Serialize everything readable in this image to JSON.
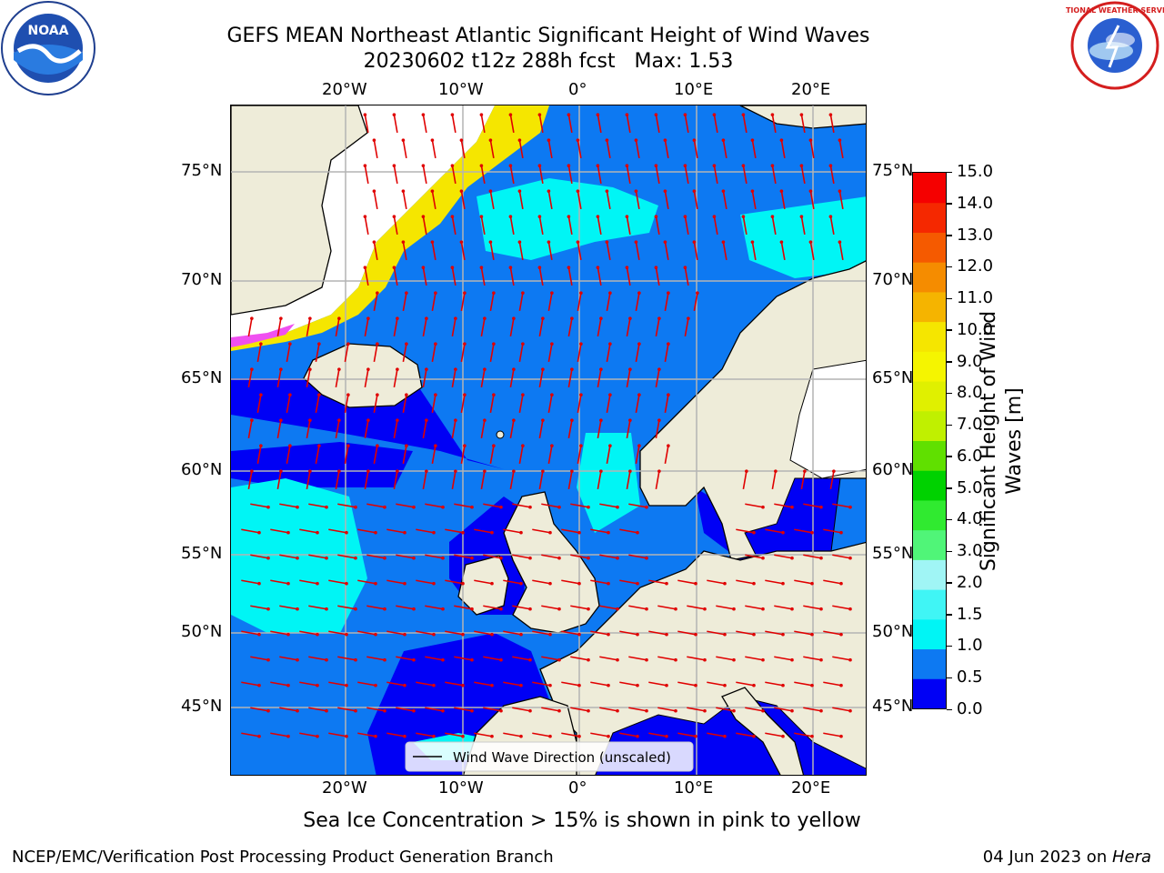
{
  "title": {
    "line1": "GEFS MEAN Northeast Atlantic Significant Height of Wind Waves",
    "line2": "20230602 t12z 288h fcst   Max: 1.53"
  },
  "map": {
    "top_lon_labels": [
      "20°W",
      "10°W",
      "0°",
      "10°E",
      "20°E"
    ],
    "bottom_lon_labels": [
      "20°W",
      "10°W",
      "0°",
      "10°E",
      "20°E"
    ],
    "left_lat_labels": [
      "75°N",
      "70°N",
      "65°N",
      "60°N",
      "55°N",
      "50°N",
      "45°N"
    ],
    "right_lat_labels": [
      "75°N",
      "70°N",
      "65°N",
      "60°N",
      "55°N",
      "50°N",
      "45°N"
    ],
    "legend_label": "Wind Wave Direction (unscaled)",
    "colors": {
      "land": "#eeecd9",
      "sea_base": "#0d79f2",
      "sea_low": "#0000f5",
      "sea_mid": "#00f5f5",
      "ice": "#ffffff",
      "arrow": "#e00000"
    }
  },
  "colorbar": {
    "label": "Significant Height of Wind Waves [m]",
    "ticks": [
      "15.0",
      "14.0",
      "13.0",
      "12.0",
      "11.0",
      "10.0",
      "9.0",
      "8.0",
      "7.0",
      "6.0",
      "5.0",
      "4.0",
      "3.0",
      "2.0",
      "1.5",
      "1.0",
      "0.5",
      "0.0"
    ],
    "colors": [
      "#0000f5",
      "#0d79f2",
      "#00f5f5",
      "#40f5f5",
      "#a0f5f5",
      "#50f578",
      "#30ea30",
      "#00d200",
      "#60e000",
      "#c0f000",
      "#e0f000",
      "#f5f500",
      "#f5e600",
      "#f5b400",
      "#f58c00",
      "#f55a00",
      "#f52800",
      "#f50000"
    ]
  },
  "notes": {
    "ice_note": "Sea Ice Concentration > 15% is shown in pink to yellow"
  },
  "footer": {
    "left": "NCEP/EMC/Verification Post Processing Product Generation Branch",
    "date": "04 Jun 2023 on ",
    "host": "Hera"
  },
  "logos": {
    "noaa_text": "NOAA",
    "nws_text": "NATIONAL WEATHER SERVICE"
  }
}
